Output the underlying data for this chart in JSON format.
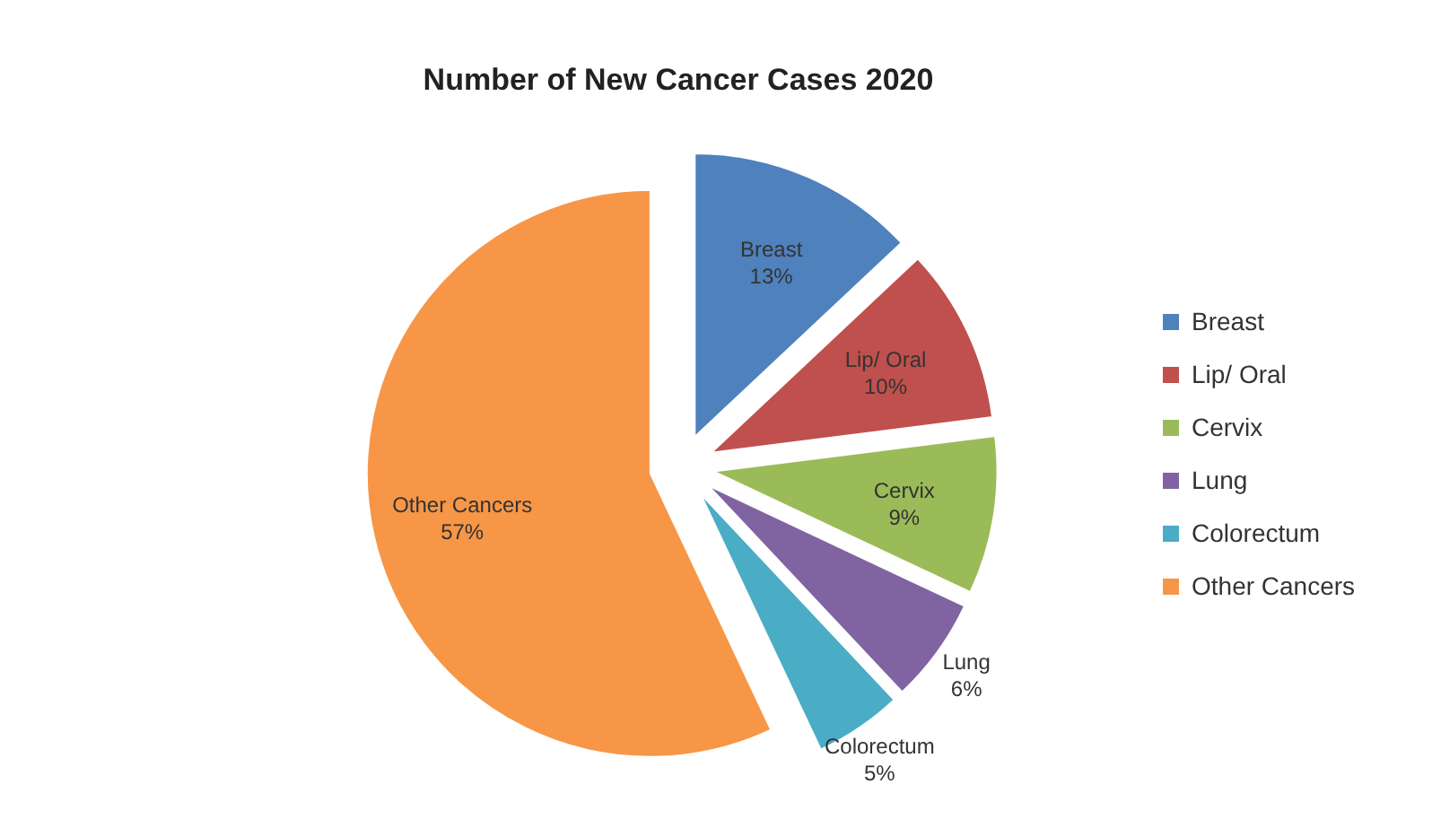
{
  "chart_data": {
    "type": "pie",
    "title": "Number of New Cancer Cases 2020",
    "categories": [
      "Breast",
      "Lip/ Oral",
      "Cervix",
      "Lung",
      "Colorectum",
      "Other Cancers"
    ],
    "values": [
      13,
      10,
      9,
      6,
      5,
      57
    ],
    "colors": [
      "#4f81bd",
      "#c0504d",
      "#9bbb59",
      "#8064a2",
      "#4bacc6",
      "#f79646"
    ],
    "value_labels": [
      "13%",
      "10%",
      "9%",
      "6%",
      "5%",
      "57%"
    ],
    "legend": "right"
  }
}
